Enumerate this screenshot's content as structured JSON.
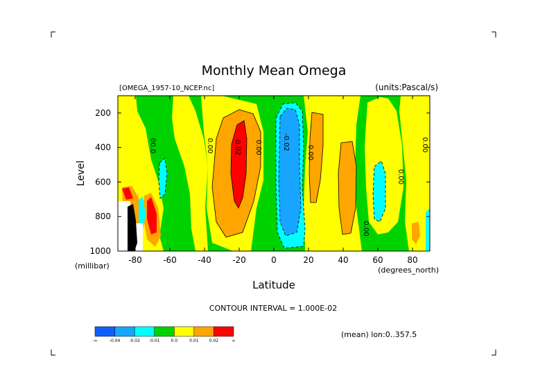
{
  "chart_data": {
    "type": "heatmap",
    "title": "Monthly Mean Omega",
    "subtitle_left": "[OMEGA_1957-10_NCEP.nc]",
    "subtitle_right": "(units:Pascal/s)",
    "xlabel": "Latitude",
    "xunits": "(degrees_north)",
    "ylabel": "Level",
    "yunits": "(millibar)",
    "x_ticks": [
      "-80",
      "-60",
      "-40",
      "-20",
      "0",
      "20",
      "40",
      "60",
      "80"
    ],
    "x_tick_values": [
      -80,
      -60,
      -40,
      -20,
      0,
      20,
      40,
      60,
      80
    ],
    "y_ticks": [
      "200",
      "400",
      "600",
      "800",
      "1000"
    ],
    "y_tick_values": [
      200,
      400,
      600,
      800,
      1000
    ],
    "xlim": [
      -90,
      90
    ],
    "ylim": [
      1000,
      100
    ],
    "contour_interval_text": "CONTOUR INTERVAL = 1.000E-02",
    "footer_text": "(mean) lon:0..357.5",
    "colorbar": {
      "colors": [
        "#0f5fff",
        "#17a5ff",
        "#00ffff",
        "#00d200",
        "#ffff00",
        "#ffa500",
        "#ff0000"
      ],
      "labels": [
        "-∞",
        "-0.04",
        "-0.02",
        "-0.01",
        "0.0",
        "0.01",
        "0.02",
        "∞"
      ]
    },
    "contour_labels": [
      {
        "text": "00.0",
        "lat": -71,
        "level": 390
      },
      {
        "text": "0.00",
        "lat": -38,
        "level": 390
      },
      {
        "text": "0.02",
        "lat": -22,
        "level": 400
      },
      {
        "text": "0.00",
        "lat": -10,
        "level": 400
      },
      {
        "text": "-0.02",
        "lat": 6,
        "level": 370
      },
      {
        "text": "0.00",
        "lat": 20,
        "level": 430
      },
      {
        "text": "0.00",
        "lat": 72,
        "level": 570
      },
      {
        "text": "0.00",
        "lat": 86,
        "level": 385
      },
      {
        "text": "0.00",
        "lat": 52,
        "level": 870
      }
    ],
    "regions": [
      {
        "value": "0.01",
        "color": "#ffa500",
        "lat": -23,
        "level": 520
      },
      {
        "value": "0.02",
        "color": "#ff0000",
        "lat": -21,
        "level": 430
      },
      {
        "value": "-0.02",
        "color": "#17a5ff",
        "lat": 10,
        "level": 530
      },
      {
        "value": "-0.01",
        "color": "#00ffff",
        "lat": 13,
        "level": 820
      },
      {
        "value": "0.01",
        "color": "#ffa500",
        "lat": 26,
        "level": 560
      },
      {
        "value": "0.01",
        "color": "#ffa500",
        "lat": 42,
        "level": 630
      },
      {
        "value": "-0.01",
        "color": "#00ffff",
        "lat": 62,
        "level": 750
      },
      {
        "value": "0.01",
        "color": "#ffa500",
        "lat": 81,
        "level": 880
      },
      {
        "value": "-0.01",
        "color": "#00ffff",
        "lat": -64,
        "level": 690
      }
    ]
  }
}
